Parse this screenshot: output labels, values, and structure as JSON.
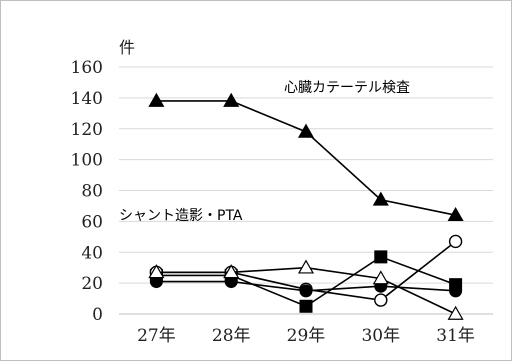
{
  "chart_data": {
    "type": "line",
    "ylabel": "件",
    "categories": [
      "27年",
      "28年",
      "29年",
      "30年",
      "31年"
    ],
    "ylim": [
      0,
      160
    ],
    "yticks": [
      0,
      20,
      40,
      60,
      80,
      100,
      120,
      140,
      160
    ],
    "grid": "horizontal",
    "annotations": [
      "心臓カテーテル検査",
      "シャント造影・PTA"
    ],
    "series": [
      {
        "name": "心臓カテーテル検査",
        "marker": "filled-triangle",
        "values": [
          138,
          138,
          118,
          74,
          64
        ]
      },
      {
        "marker": "filled-square",
        "values": [
          25,
          25,
          5,
          37,
          19
        ]
      },
      {
        "marker": "open-circle",
        "values": [
          27,
          27,
          16,
          9,
          47
        ]
      },
      {
        "marker": "filled-circle",
        "values": [
          21,
          21,
          15,
          18,
          15
        ]
      },
      {
        "marker": "open-triangle",
        "values": [
          27,
          27,
          30,
          23,
          0
        ]
      }
    ],
    "colors": {
      "line": "#000000",
      "grid": "#d9d9d9",
      "axis": "#bfbfbf"
    }
  }
}
